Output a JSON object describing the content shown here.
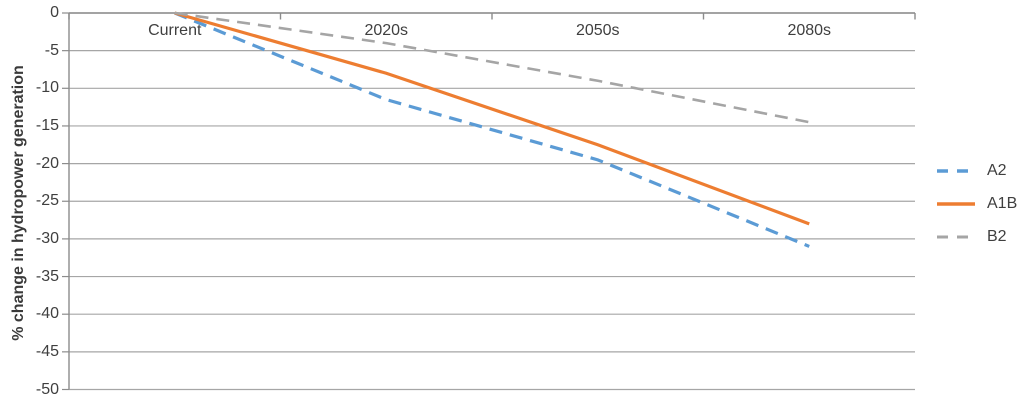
{
  "chart_data": {
    "type": "line",
    "title": "",
    "xlabel": "",
    "ylabel": "% change in hydropower generation",
    "categories": [
      "Current",
      "2020s",
      "2050s",
      "2080s"
    ],
    "series": [
      {
        "name": "A2",
        "values": [
          0,
          -11.5,
          -19.5,
          -31
        ],
        "color": "#5B9BD5",
        "style": "dashed",
        "width": 3.2
      },
      {
        "name": "A1B",
        "values": [
          0,
          -8,
          -17.5,
          -28
        ],
        "color": "#ED7D31",
        "style": "solid",
        "width": 3.2
      },
      {
        "name": "B2",
        "values": [
          0,
          -4,
          -9,
          -14.5
        ],
        "color": "#A5A5A5",
        "style": "dashed",
        "width": 2.6
      }
    ],
    "ylim": [
      -50,
      0
    ],
    "yticks": [
      0,
      -5,
      -10,
      -15,
      -20,
      -25,
      -30,
      -35,
      -40,
      -45,
      -50
    ],
    "grid": true,
    "legend_position": "right"
  },
  "colors": {
    "background": "#FFFFFF",
    "gridline": "#A6A6A6",
    "axis": "#8C8C8C",
    "text": "#3F3F3F"
  }
}
